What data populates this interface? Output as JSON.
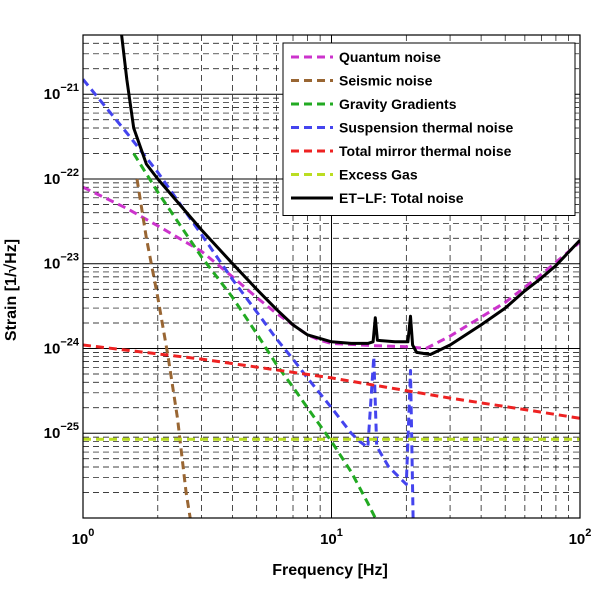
{
  "chart_data": {
    "type": "line",
    "xlabel": "Frequency [Hz]",
    "ylabel": "Strain [1/√Hz]",
    "x_scale": "log",
    "y_scale": "log",
    "xlim": [
      1,
      100
    ],
    "ylim": [
      1e-26,
      5e-21
    ],
    "x_ticks": [
      {
        "value": 1,
        "base": "10",
        "exp": "0"
      },
      {
        "value": 10,
        "base": "10",
        "exp": "1"
      },
      {
        "value": 100,
        "base": "10",
        "exp": "2"
      }
    ],
    "y_ticks": [
      {
        "value": 1e-25,
        "base": "10",
        "exp": "−25"
      },
      {
        "value": 1e-24,
        "base": "10",
        "exp": "−24"
      },
      {
        "value": 1e-23,
        "base": "10",
        "exp": "−23"
      },
      {
        "value": 1e-22,
        "base": "10",
        "exp": "−22"
      },
      {
        "value": 1e-21,
        "base": "10",
        "exp": "−21"
      }
    ],
    "grid": true,
    "legend_position": "top-right",
    "series": [
      {
        "name": "Quantum noise",
        "color": "#cc33cc",
        "dash": "dashed",
        "points": [
          [
            1,
            8e-23
          ],
          [
            1.5,
            4.5e-23
          ],
          [
            2,
            2.8e-23
          ],
          [
            3,
            1.4e-23
          ],
          [
            4,
            7e-24
          ],
          [
            5,
            4e-24
          ],
          [
            6,
            2.6e-24
          ],
          [
            7,
            1.9e-24
          ],
          [
            8,
            1.45e-24
          ],
          [
            9,
            1.25e-24
          ],
          [
            10,
            1.15e-24
          ],
          [
            15,
            1.08e-24
          ],
          [
            20,
            1.05e-24
          ],
          [
            24,
            1e-24
          ],
          [
            30,
            1.4e-24
          ],
          [
            50,
            3.5e-24
          ],
          [
            70,
            7.5e-24
          ],
          [
            100,
            1.8e-23
          ]
        ]
      },
      {
        "name": "Seismic noise",
        "color": "#996633",
        "dash": "dashed",
        "points": [
          [
            1.65,
            1e-22
          ],
          [
            1.8,
            2e-23
          ],
          [
            2.0,
            4e-24
          ],
          [
            2.2,
            8e-25
          ],
          [
            2.4,
            1.5e-25
          ],
          [
            2.6,
            2e-26
          ],
          [
            2.7,
            1e-26
          ]
        ]
      },
      {
        "name": "Gravity Gradients",
        "color": "#22aa22",
        "dash": "dashed",
        "points": [
          [
            1.6,
            2e-22
          ],
          [
            2,
            7e-23
          ],
          [
            3,
            1.2e-23
          ],
          [
            4,
            4e-24
          ],
          [
            5,
            1.5e-24
          ],
          [
            6,
            6.5e-25
          ],
          [
            7,
            3.5e-25
          ],
          [
            8,
            2e-25
          ],
          [
            10,
            8e-26
          ],
          [
            12,
            3.5e-26
          ],
          [
            14,
            1.5e-26
          ],
          [
            15,
            1e-26
          ]
        ]
      },
      {
        "name": "Suspension thermal noise",
        "color": "#4444ee",
        "dash": "dashed",
        "points": [
          [
            1,
            1.5e-21
          ],
          [
            1.5,
            3.5e-22
          ],
          [
            2,
            1.2e-22
          ],
          [
            3,
            2.2e-23
          ],
          [
            4,
            6.5e-24
          ],
          [
            5,
            2.7e-24
          ],
          [
            6,
            1.3e-24
          ],
          [
            7,
            7.5e-25
          ],
          [
            8,
            4.5e-25
          ],
          [
            10,
            2e-25
          ],
          [
            12,
            1e-25
          ],
          [
            13,
            8e-26
          ],
          [
            14,
            6.8e-26
          ],
          [
            14.8,
            8e-25
          ],
          [
            15.2,
            7e-26
          ],
          [
            17,
            4e-26
          ],
          [
            20,
            2.5e-26
          ],
          [
            20.8,
            5.5e-25
          ],
          [
            21.3,
            1e-26
          ]
        ]
      },
      {
        "name": "Total mirror thermal noise",
        "color": "#ee2222",
        "dash": "dashed",
        "points": [
          [
            1,
            1.1e-24
          ],
          [
            3,
            7.5e-25
          ],
          [
            10,
            4.5e-25
          ],
          [
            30,
            2.6e-25
          ],
          [
            60,
            1.9e-25
          ],
          [
            100,
            1.5e-25
          ]
        ]
      },
      {
        "name": "Excess Gas",
        "color": "#bbdd22",
        "dash": "dashed",
        "points": [
          [
            1,
            8.5e-26
          ],
          [
            100,
            8.5e-26
          ]
        ]
      },
      {
        "name": "ET−LF: Total noise",
        "color": "#000000",
        "dash": "solid",
        "points": [
          [
            1.43,
            5e-21
          ],
          [
            1.5,
            1.5e-21
          ],
          [
            1.6,
            4e-22
          ],
          [
            1.8,
            1.5e-22
          ],
          [
            2,
            1e-22
          ],
          [
            3,
            2.5e-23
          ],
          [
            4,
            1e-23
          ],
          [
            5,
            5e-24
          ],
          [
            6,
            2.9e-24
          ],
          [
            7,
            1.9e-24
          ],
          [
            8,
            1.45e-24
          ],
          [
            10,
            1.2e-24
          ],
          [
            12,
            1.15e-24
          ],
          [
            14,
            1.15e-24
          ],
          [
            14.7,
            1.2e-24
          ],
          [
            15,
            2.3e-24
          ],
          [
            15.3,
            1.25e-24
          ],
          [
            18,
            1.2e-24
          ],
          [
            20.3,
            1.2e-24
          ],
          [
            20.8,
            2.4e-24
          ],
          [
            21.2,
            1.1e-24
          ],
          [
            22,
            9e-25
          ],
          [
            25,
            8.5e-25
          ],
          [
            30,
            1.1e-24
          ],
          [
            40,
            1.9e-24
          ],
          [
            50,
            3e-24
          ],
          [
            60,
            4.8e-24
          ],
          [
            70,
            6.8e-24
          ],
          [
            80,
            9.5e-24
          ],
          [
            100,
            1.9e-23
          ]
        ]
      }
    ]
  }
}
